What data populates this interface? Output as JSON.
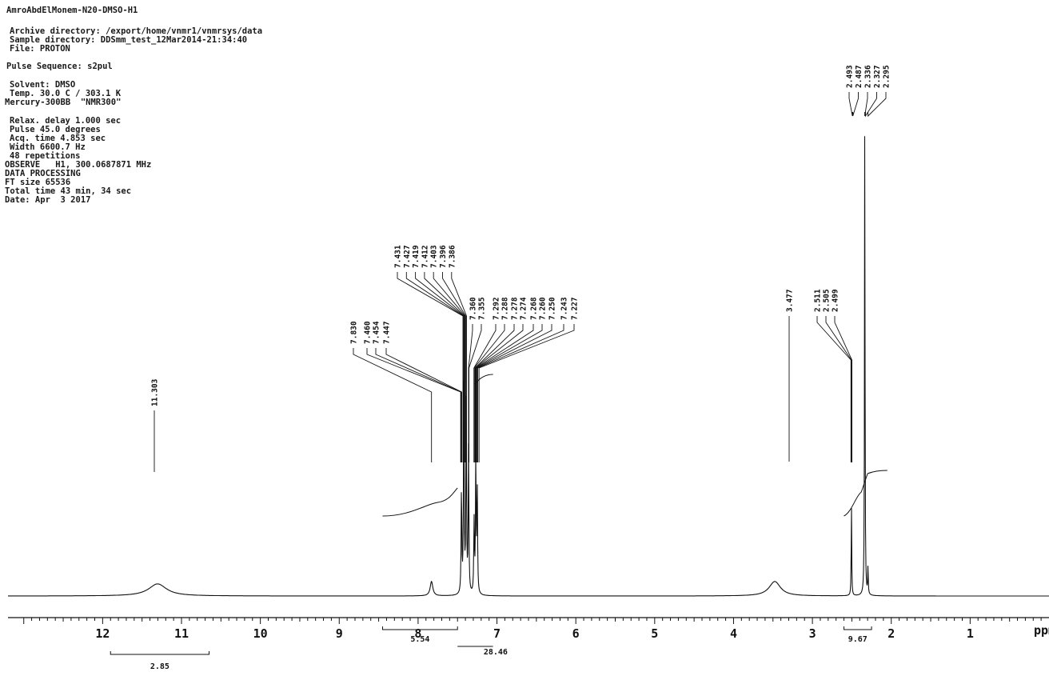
{
  "header": {
    "lines": [
      "AmroAbdElMonem-N20-DMSO-H1",
      "Archive directory: /export/home/vnmr1/vnmrsys/data",
      "Sample directory: DDSmm_test_12Mar2014-21:34:40",
      "File: PROTON",
      "Pulse Sequence: s2pul",
      "Solvent: DMSO",
      "Temp. 30.0 C / 303.1 K",
      "Mercury-300BB  \"NMR300\"",
      "Relax. delay 1.000 sec",
      "Pulse 45.0 degrees",
      "Acq. time 4.853 sec",
      "Width 6600.7 Hz",
      "48 repetitions",
      "OBSERVE   H1, 300.0687871 MHz",
      "DATA PROCESSING",
      "FT size 65536",
      "Total time 43 min, 34 sec",
      "Date: Apr  3 2017"
    ]
  },
  "chart_data": {
    "type": "line",
    "title": "",
    "xlabel": "ppm",
    "ylabel": "",
    "x_reversed": true,
    "xlim": [
      13.2,
      0.0
    ],
    "ylim": [
      0,
      100
    ],
    "grid": false,
    "x_ticks": [
      12,
      11,
      10,
      9,
      8,
      7,
      6,
      5,
      4,
      3,
      2,
      1
    ],
    "x_tick_labels": [
      "12",
      "11",
      "10",
      "9",
      "8",
      "7",
      "6",
      "5",
      "4",
      "3",
      "2",
      "1"
    ],
    "series": [
      {
        "peaks": [
          {
            "ppm": 11.303,
            "height": 2.5,
            "width": 0.55
          },
          {
            "ppm": 7.83,
            "height": 3,
            "width": 0.08
          },
          {
            "ppm": 7.45,
            "height": 22,
            "width": 0.02
          },
          {
            "ppm": 7.42,
            "height": 45,
            "width": 0.02
          },
          {
            "ppm": 7.39,
            "height": 40,
            "width": 0.02
          },
          {
            "ppm": 7.36,
            "height": 30,
            "width": 0.02
          },
          {
            "ppm": 7.29,
            "height": 15,
            "width": 0.02
          },
          {
            "ppm": 7.268,
            "height": 28,
            "width": 0.02
          },
          {
            "ppm": 7.25,
            "height": 22,
            "width": 0.02
          },
          {
            "ppm": 3.477,
            "height": 3,
            "width": 0.35
          },
          {
            "ppm": 2.505,
            "height": 19,
            "width": 0.015
          },
          {
            "ppm": 2.336,
            "height": 100,
            "width": 0.015
          },
          {
            "ppm": 2.295,
            "height": 6,
            "width": 0.015
          }
        ]
      }
    ],
    "peak_labels": [
      {
        "group": [
          11.303
        ]
      },
      {
        "group": [
          7.83,
          7.46,
          7.454,
          7.447
        ]
      },
      {
        "group": [
          7.431,
          7.427,
          7.419,
          7.412,
          7.403,
          7.396,
          7.386
        ]
      },
      {
        "group": [
          7.36,
          7.355,
          7.292,
          7.288,
          7.278,
          7.274,
          7.268,
          7.26,
          7.25,
          7.243,
          7.227
        ]
      },
      {
        "group": [
          3.477
        ]
      },
      {
        "group": [
          2.511,
          2.505,
          2.499
        ]
      },
      {
        "group": [
          2.493,
          2.487,
          2.336,
          2.327,
          2.295
        ]
      }
    ],
    "integrals": [
      {
        "from": 11.9,
        "to": 10.65,
        "value": "2.85"
      },
      {
        "from": 8.45,
        "to": 7.5,
        "value": "5.54"
      },
      {
        "from": 7.5,
        "to": 7.05,
        "value": "28.46"
      },
      {
        "from": 2.6,
        "to": 2.25,
        "value": "9.67"
      }
    ]
  }
}
